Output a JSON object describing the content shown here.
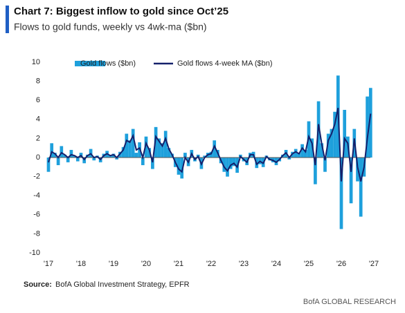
{
  "chart_data": {
    "type": "bar_line",
    "title": "Chart 7: Biggest inflow to gold since Oct’25",
    "subtitle": "Flows to gold funds, weekly vs 4wk-ma ($bn)",
    "source_label": "Source:",
    "source": "BofA Global Investment Strategy, EPFR",
    "footer": "BofA GLOBAL RESEARCH",
    "x": [
      2017.0,
      2017.1,
      2017.2,
      2017.3,
      2017.4,
      2017.5,
      2017.6,
      2017.7,
      2017.8,
      2017.9,
      2018.0,
      2018.1,
      2018.2,
      2018.3,
      2018.4,
      2018.5,
      2018.6,
      2018.7,
      2018.8,
      2018.9,
      2019.0,
      2019.1,
      2019.2,
      2019.3,
      2019.4,
      2019.5,
      2019.6,
      2019.7,
      2019.8,
      2019.9,
      2020.0,
      2020.1,
      2020.2,
      2020.3,
      2020.4,
      2020.5,
      2020.6,
      2020.7,
      2020.8,
      2020.9,
      2021.0,
      2021.1,
      2021.2,
      2021.3,
      2021.4,
      2021.5,
      2021.6,
      2021.7,
      2021.8,
      2021.9,
      2022.0,
      2022.1,
      2022.2,
      2022.3,
      2022.4,
      2022.5,
      2022.6,
      2022.7,
      2022.8,
      2022.9,
      2023.0,
      2023.1,
      2023.2,
      2023.3,
      2023.4,
      2023.5,
      2023.6,
      2023.7,
      2023.8,
      2023.9,
      2024.0,
      2024.1,
      2024.2,
      2024.3,
      2024.4,
      2024.5,
      2024.6,
      2024.7,
      2024.8,
      2024.9,
      2025.0,
      2025.1,
      2025.2,
      2025.3,
      2025.4,
      2025.5,
      2025.6,
      2025.7,
      2025.8,
      2025.9,
      2026.0,
      2026.1,
      2026.2,
      2026.3,
      2026.4,
      2026.5,
      2026.6,
      2026.7,
      2026.8,
      2026.9
    ],
    "series": [
      {
        "name": "Gold flows ($bn)",
        "color": "#1ea0dc",
        "values": [
          -1.5,
          1.5,
          0.5,
          -0.8,
          1.2,
          0.3,
          -0.5,
          0.8,
          0.2,
          -0.4,
          0.5,
          -0.6,
          0.3,
          0.9,
          -0.3,
          0.2,
          -0.5,
          0.4,
          0.7,
          0.2,
          0.4,
          -0.2,
          0.6,
          1.1,
          2.5,
          1.8,
          3.0,
          0.5,
          1.6,
          -0.8,
          2.2,
          1.0,
          -1.2,
          3.2,
          2.0,
          1.5,
          2.8,
          1.0,
          0.4,
          -1.0,
          -1.8,
          -2.2,
          0.5,
          -0.9,
          0.8,
          -0.4,
          0.3,
          -1.2,
          0.2,
          0.5,
          0.6,
          1.8,
          0.8,
          -0.6,
          -1.5,
          -2.0,
          -1.2,
          -0.9,
          -1.6,
          0.3,
          -0.4,
          -0.8,
          0.5,
          0.6,
          -1.1,
          -0.7,
          -1.0,
          0.2,
          -0.3,
          -0.5,
          -0.8,
          -0.4,
          0.3,
          0.8,
          -0.2,
          0.6,
          0.9,
          0.5,
          1.4,
          0.8,
          3.8,
          2.0,
          -2.8,
          5.9,
          1.5,
          -1.5,
          2.5,
          3.0,
          4.8,
          8.6,
          -7.5,
          5.0,
          2.2,
          -4.8,
          3.0,
          -2.5,
          -6.2,
          -2.0,
          6.4,
          7.3
        ]
      },
      {
        "name": "Gold flows 4-week MA ($bn)",
        "color": "#14206b",
        "values": [
          -0.5,
          0.6,
          0.4,
          0,
          0.5,
          0.3,
          0,
          0.3,
          0.2,
          0,
          0.2,
          -0.2,
          0.2,
          0.4,
          0,
          0.1,
          -0.2,
          0.2,
          0.4,
          0.2,
          0.3,
          0,
          0.4,
          0.8,
          1.8,
          1.6,
          2.3,
          0.8,
          1.0,
          0,
          1.5,
          0.8,
          -0.5,
          2.2,
          1.7,
          1.2,
          2.0,
          0.9,
          0.3,
          -0.5,
          -1.2,
          -1.5,
          0,
          -0.5,
          0.4,
          -0.2,
          0.1,
          -0.7,
          0,
          0.3,
          0.4,
          1.2,
          0.5,
          -0.3,
          -1.0,
          -1.4,
          -0.8,
          -0.6,
          -1.0,
          0.1,
          -0.2,
          -0.5,
          0.3,
          0.3,
          -0.7,
          -0.4,
          -0.6,
          0.1,
          -0.2,
          -0.3,
          -0.5,
          -0.2,
          0.2,
          0.5,
          0,
          0.4,
          0.6,
          0.4,
          1.0,
          0.6,
          2.2,
          1.5,
          -0.8,
          3.5,
          1.4,
          -0.3,
          1.8,
          2.5,
          3.5,
          5.2,
          -2.5,
          2.0,
          1.5,
          -1.5,
          2.0,
          -1.0,
          -2.5,
          -1.0,
          2.0,
          4.6
        ]
      }
    ],
    "xlim": [
      2017,
      2027
    ],
    "xticks": [
      {
        "value": 2017,
        "label": "'17"
      },
      {
        "value": 2018,
        "label": "'18"
      },
      {
        "value": 2019,
        "label": "'19"
      },
      {
        "value": 2020,
        "label": "'20"
      },
      {
        "value": 2021,
        "label": "'21"
      },
      {
        "value": 2022,
        "label": "'22"
      },
      {
        "value": 2023,
        "label": "'23"
      },
      {
        "value": 2024,
        "label": "'24"
      },
      {
        "value": 2025,
        "label": "'25"
      },
      {
        "value": 2026,
        "label": "'26"
      },
      {
        "value": 2027,
        "label": "'27"
      }
    ],
    "ylim": [
      -10,
      10
    ],
    "yticks": [
      -10,
      -8,
      -6,
      -4,
      -2,
      0,
      2,
      4,
      6,
      8,
      10
    ],
    "grid": false
  }
}
